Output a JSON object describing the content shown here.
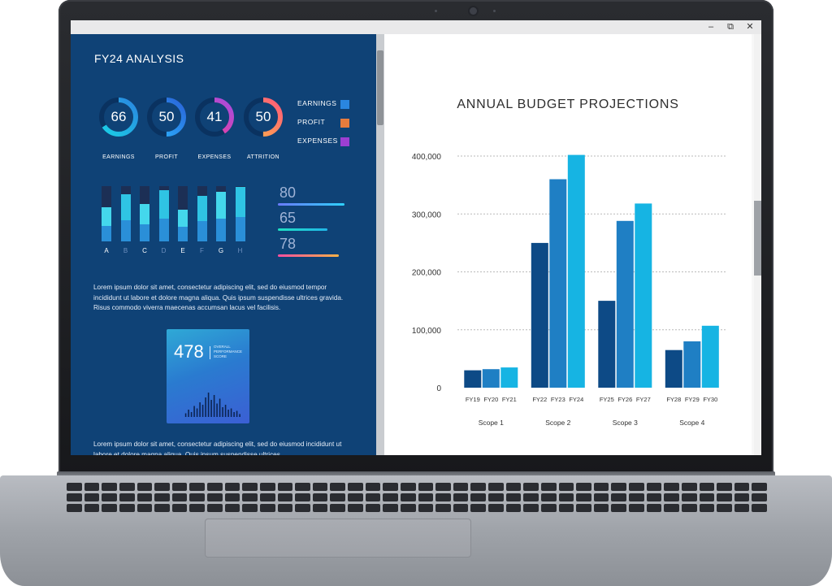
{
  "window": {
    "minimize": "–",
    "restore": "⧉",
    "close": "✕"
  },
  "left_panel": {
    "title": "FY24 ANALYSIS",
    "rings": [
      {
        "value": "66",
        "label": "EARNINGS",
        "fraction": 0.66,
        "colors": [
          "#1ad1e6",
          "#2a86e0"
        ]
      },
      {
        "value": "50",
        "label": "PROFIT",
        "fraction": 0.5,
        "colors": [
          "#2bb6ff",
          "#2a63d8"
        ]
      },
      {
        "value": "41",
        "label": "EXPENSES",
        "fraction": 0.41,
        "colors": [
          "#ff3d8e",
          "#a24de0"
        ]
      },
      {
        "value": "50",
        "label": "ATTRITION",
        "fraction": 0.5,
        "colors": [
          "#ffb347",
          "#ff5a7a"
        ]
      }
    ],
    "legend": [
      {
        "label": "EARNINGS",
        "color": "#2a86e0"
      },
      {
        "label": "PROFIT",
        "color": "#e77c3d"
      },
      {
        "label": "EXPENSES",
        "color": "#9d3fd2"
      }
    ],
    "bars": [
      {
        "label": "A",
        "fill": 0.62,
        "highlight": true
      },
      {
        "label": "B",
        "fill": 0.86,
        "highlight": false
      },
      {
        "label": "C",
        "fill": 0.68,
        "highlight": true
      },
      {
        "label": "D",
        "fill": 0.92,
        "highlight": false
      },
      {
        "label": "E",
        "fill": 0.58,
        "highlight": true
      },
      {
        "label": "F",
        "fill": 0.82,
        "highlight": false
      },
      {
        "label": "G",
        "fill": 0.9,
        "highlight": true
      },
      {
        "label": "H",
        "fill": 0.98,
        "highlight": false
      }
    ],
    "metrics": [
      {
        "value": "80",
        "fill": 1.0,
        "colors": [
          "#6a7bff",
          "#2fd1ff"
        ]
      },
      {
        "value": "65",
        "fill": 0.74,
        "colors": [
          "#1ee0c2",
          "#21b6e8"
        ]
      },
      {
        "value": "78",
        "fill": 0.92,
        "colors": [
          "#ff4fa0",
          "#ffb347"
        ]
      }
    ],
    "paragraph_1": "Lorem ipsum dolor sit amet, consectetur adipiscing elit, sed do eiusmod tempor incididunt ut labore et dolore magna aliqua. Quis ipsum suspendisse ultrices gravida. Risus commodo viverra maecenas accumsan lacus vel facilisis.",
    "score_card": {
      "value": "478",
      "caption": "OVERALL PERFORMANCE SCORE",
      "spark": [
        0.15,
        0.3,
        0.2,
        0.45,
        0.35,
        0.6,
        0.5,
        0.8,
        1.0,
        0.7,
        0.9,
        0.55,
        0.75,
        0.4,
        0.5,
        0.3,
        0.35,
        0.2,
        0.25,
        0.12
      ]
    },
    "paragraph_2": "Lorem ipsum dolor sit amet, consectetur adipiscing elit, sed do eiusmod incididunt ut labore et dolore magna aliqua. Quis ipsum suspendisse ultrices"
  },
  "chart_data": {
    "type": "bar",
    "title": "ANNUAL BUDGET PROJECTIONS",
    "xlabel": "",
    "ylabel": "",
    "ylim": [
      0,
      400000
    ],
    "y_ticks": [
      "0",
      "100,000",
      "200,000",
      "300,000",
      "400,000"
    ],
    "grid": true,
    "groups": [
      {
        "name": "Scope 1",
        "categories": [
          "FY19",
          "FY20",
          "FY21"
        ],
        "values": [
          30000,
          32000,
          35000
        ]
      },
      {
        "name": "Scope 2",
        "categories": [
          "FY22",
          "FY23",
          "FY24"
        ],
        "values": [
          250000,
          360000,
          402000
        ]
      },
      {
        "name": "Scope 3",
        "categories": [
          "FY25",
          "FY26",
          "FY27"
        ],
        "values": [
          150000,
          288000,
          318000
        ]
      },
      {
        "name": "Scope 4",
        "categories": [
          "FY28",
          "FY29",
          "FY30"
        ],
        "values": [
          65000,
          80000,
          107000
        ]
      }
    ],
    "bar_colors": [
      "#0d4a86",
      "#1f7fc4",
      "#16b4e3"
    ]
  }
}
